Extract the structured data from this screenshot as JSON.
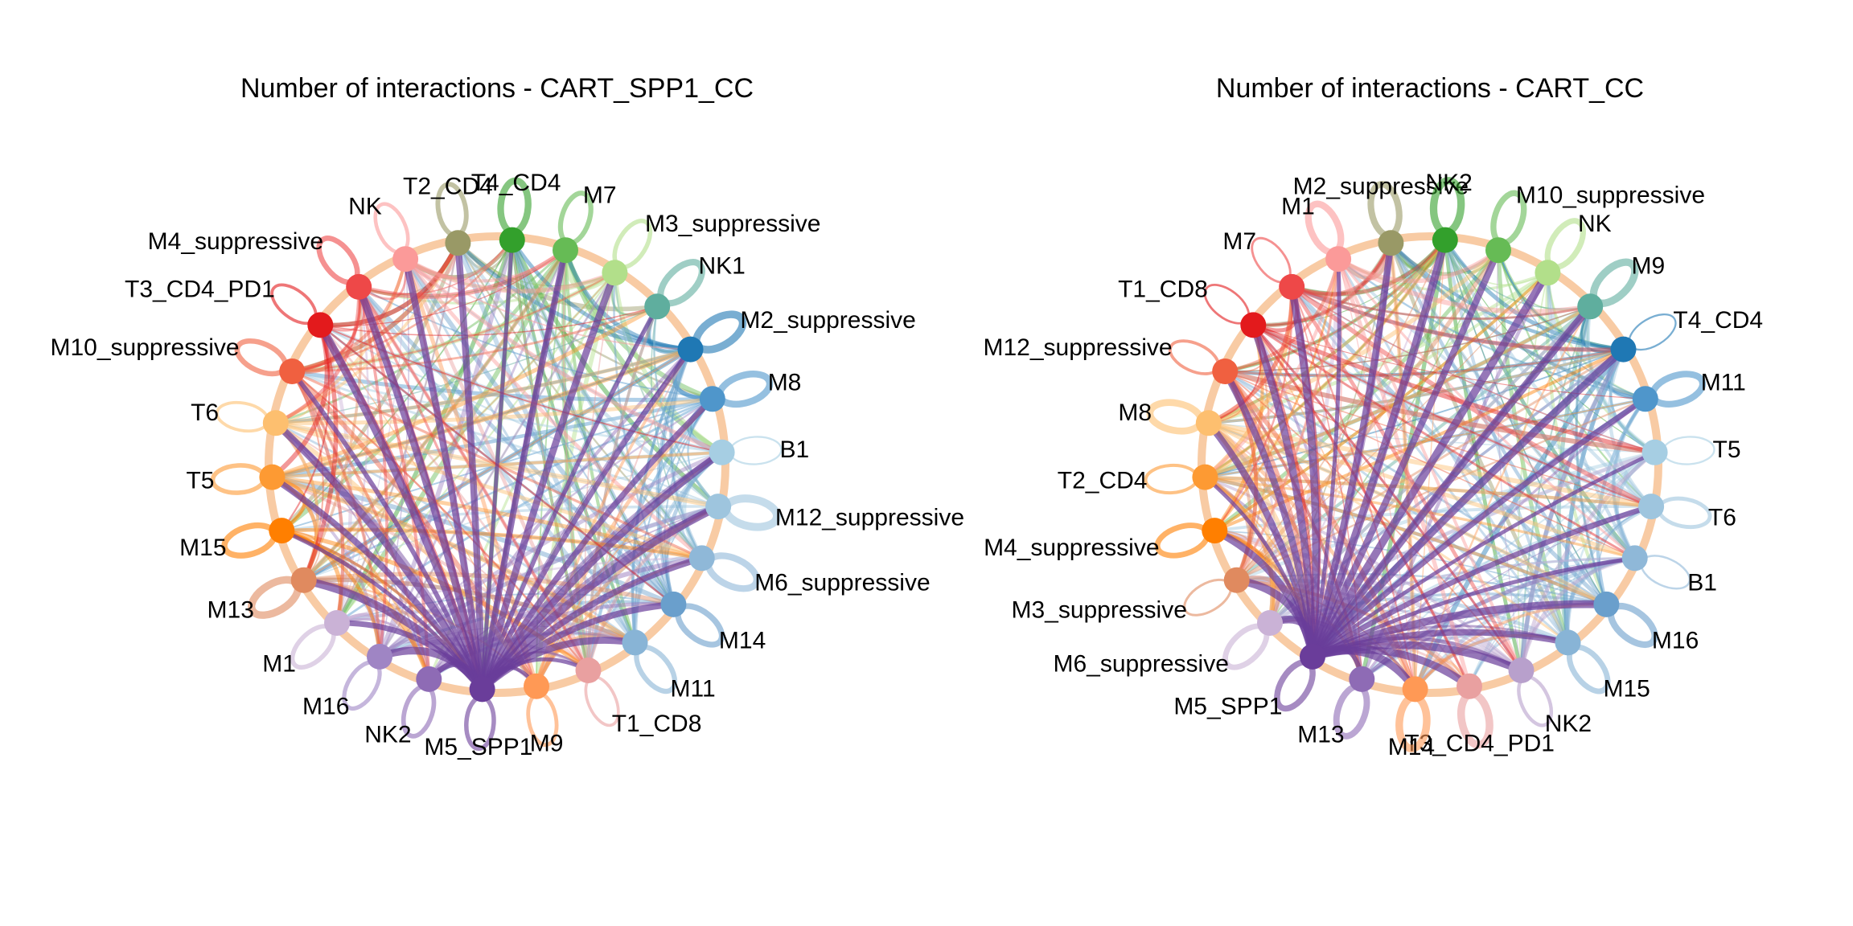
{
  "figure": {
    "type": "circle-network",
    "palette": {
      "red": "#e41a1c",
      "blue": "#1f78b4",
      "green": "#33a02c",
      "purple": "#6a3d9a",
      "orange": "#ff7f00"
    }
  },
  "panels": [
    {
      "title": "Number of interactions - CART_SPP1_CC",
      "hub": "M5_SPP1",
      "nodes": [
        {
          "name": "T2_CD4",
          "color": "#999966"
        },
        {
          "name": "T4_CD4",
          "color": "#33a02c"
        },
        {
          "name": "M7",
          "color": "#66bb55"
        },
        {
          "name": "M3_suppressive",
          "color": "#b2df8a"
        },
        {
          "name": "NK1",
          "color": "#5fae9e"
        },
        {
          "name": "M2_suppressive",
          "color": "#1f78b4"
        },
        {
          "name": "M8",
          "color": "#4f96cb"
        },
        {
          "name": "B1",
          "color": "#a6cee3"
        },
        {
          "name": "M12_suppressive",
          "color": "#9ec5de"
        },
        {
          "name": "M6_suppressive",
          "color": "#8fb8d8"
        },
        {
          "name": "M14",
          "color": "#6a9fcc"
        },
        {
          "name": "M11",
          "color": "#88b4d6"
        },
        {
          "name": "T1_CD8",
          "color": "#e9a0a0"
        },
        {
          "name": "M9",
          "color": "#ff9955"
        },
        {
          "name": "M5_SPP1",
          "color": "#6a3d9a"
        },
        {
          "name": "NK2",
          "color": "#8e6bb5"
        },
        {
          "name": "M16",
          "color": "#9f85c4"
        },
        {
          "name": "M1",
          "color": "#cab2d6"
        },
        {
          "name": "M13",
          "color": "#e08a5f"
        },
        {
          "name": "M15",
          "color": "#ff7f00"
        },
        {
          "name": "T5",
          "color": "#fd9a33"
        },
        {
          "name": "T6",
          "color": "#fdbf6f"
        },
        {
          "name": "M10_suppressive",
          "color": "#f06040"
        },
        {
          "name": "T3_CD4_PD1",
          "color": "#e31a1c"
        },
        {
          "name": "M4_suppressive",
          "color": "#ee4848"
        },
        {
          "name": "NK",
          "color": "#fb9a99"
        }
      ]
    },
    {
      "title": "Number of interactions - CART_CC",
      "hub": "M5_SPP1",
      "nodes": [
        {
          "name": "M2_suppressive",
          "color": "#999966"
        },
        {
          "name": "NK2",
          "color": "#33a02c"
        },
        {
          "name": "M10_suppressive",
          "color": "#66bb55"
        },
        {
          "name": "NK",
          "color": "#b2df8a"
        },
        {
          "name": "M9",
          "color": "#5fae9e"
        },
        {
          "name": "T4_CD4",
          "color": "#1f78b4"
        },
        {
          "name": "M11",
          "color": "#4f96cb"
        },
        {
          "name": "T5",
          "color": "#a6cee3"
        },
        {
          "name": "T6",
          "color": "#9ec5de"
        },
        {
          "name": "B1",
          "color": "#8fb8d8"
        },
        {
          "name": "M16",
          "color": "#6a9fcc"
        },
        {
          "name": "M15",
          "color": "#88b4d6"
        },
        {
          "name": "NK2",
          "color": "#b8a0cc"
        },
        {
          "name": "T3_CD4_PD1",
          "color": "#e9a0a0"
        },
        {
          "name": "M14",
          "color": "#ff9955"
        },
        {
          "name": "M13",
          "color": "#8e6bb5"
        },
        {
          "name": "M5_SPP1",
          "color": "#6a3d9a"
        },
        {
          "name": "M6_suppressive",
          "color": "#cab2d6"
        },
        {
          "name": "M3_suppressive",
          "color": "#e08a5f"
        },
        {
          "name": "M4_suppressive",
          "color": "#ff7f00"
        },
        {
          "name": "T2_CD4",
          "color": "#fd9a33"
        },
        {
          "name": "M8",
          "color": "#fdbf6f"
        },
        {
          "name": "M12_suppressive",
          "color": "#f06040"
        },
        {
          "name": "T1_CD8",
          "color": "#e31a1c"
        },
        {
          "name": "M7",
          "color": "#ee4848"
        },
        {
          "name": "M1",
          "color": "#fb9a99"
        }
      ]
    }
  ]
}
